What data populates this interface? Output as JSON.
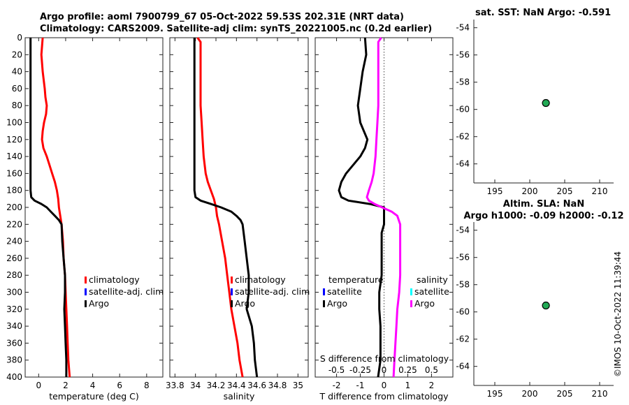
{
  "header": {
    "line1": "Argo profile: aoml 7900799_67 05-Oct-2022 59.53S 202.31E (NRT data)",
    "line2": "Climatology: CARS2009. Satellite-adj clim: synTS_20221005.nc (0.2d earlier)",
    "stamp": "©IMOS 10-Oct-2022 11:39:44"
  },
  "colors": {
    "climatology": "#ff0000",
    "satellite": "#0000ff",
    "argo": "#000000",
    "sal_satellite": "#00ffff",
    "sal_argo": "#ff00ff",
    "marker": "#22aa55"
  },
  "chart_data": [
    {
      "type": "line",
      "name": "temperature",
      "xlabel": "temperature (deg C)",
      "xlim": [
        -1,
        9.2
      ],
      "ylim": [
        0,
        400
      ],
      "xticks": [
        0,
        2,
        4,
        6,
        8
      ],
      "xtick_labels": [
        "0",
        "2",
        "4",
        "6",
        "8"
      ],
      "yticks": [
        0,
        20,
        40,
        60,
        80,
        100,
        120,
        140,
        160,
        180,
        200,
        220,
        240,
        260,
        280,
        300,
        320,
        340,
        360,
        380,
        400
      ],
      "legend": [
        "climatology",
        "satellite-adj. clim",
        "Argo"
      ],
      "series": [
        {
          "name": "climatology",
          "color": "red",
          "depth": [
            0,
            20,
            40,
            60,
            70,
            80,
            90,
            100,
            110,
            120,
            130,
            140,
            150,
            160,
            170,
            180,
            190,
            200,
            210,
            220,
            240,
            260,
            280,
            300,
            320,
            340,
            360,
            380,
            400
          ],
          "values": [
            0.3,
            0.2,
            0.3,
            0.45,
            0.5,
            0.6,
            0.55,
            0.4,
            0.3,
            0.25,
            0.35,
            0.6,
            0.8,
            1.0,
            1.2,
            1.35,
            1.45,
            1.5,
            1.6,
            1.7,
            1.8,
            1.85,
            1.95,
            2.0,
            2.05,
            2.1,
            2.15,
            2.2,
            2.3
          ]
        },
        {
          "name": "Argo",
          "color": "black",
          "depth": [
            0,
            20,
            40,
            60,
            80,
            100,
            120,
            140,
            160,
            180,
            188,
            192,
            196,
            200,
            205,
            210,
            215,
            220,
            240,
            260,
            280,
            300,
            320,
            340,
            360,
            380,
            400
          ],
          "values": [
            -0.6,
            -0.6,
            -0.6,
            -0.6,
            -0.6,
            -0.6,
            -0.6,
            -0.6,
            -0.6,
            -0.6,
            -0.55,
            -0.3,
            0.2,
            0.6,
            0.9,
            1.2,
            1.5,
            1.7,
            1.75,
            1.85,
            1.95,
            1.95,
            1.9,
            1.95,
            2.0,
            2.05,
            2.05
          ]
        }
      ]
    },
    {
      "type": "line",
      "name": "salinity",
      "xlabel": "salinity",
      "xlim": [
        33.75,
        35.1
      ],
      "ylim": [
        0,
        400
      ],
      "xticks": [
        33.8,
        34,
        34.2,
        34.4,
        34.6,
        34.8,
        35
      ],
      "xtick_labels": [
        "33.8",
        "34",
        "34.2",
        "34.4",
        "34.6",
        "34.8",
        "35"
      ],
      "legend": [
        "climatology",
        "satellite-adj. clim",
        "Argo"
      ],
      "series": [
        {
          "name": "climatology",
          "color": "red",
          "depth": [
            0,
            5,
            20,
            40,
            60,
            80,
            100,
            120,
            140,
            160,
            170,
            180,
            190,
            200,
            210,
            220,
            240,
            260,
            280,
            300,
            320,
            340,
            360,
            380,
            400
          ],
          "values": [
            34.02,
            34.05,
            34.05,
            34.05,
            34.05,
            34.05,
            34.06,
            34.07,
            34.08,
            34.1,
            34.12,
            34.15,
            34.18,
            34.2,
            34.21,
            34.23,
            34.26,
            34.29,
            34.31,
            34.33,
            34.35,
            34.38,
            34.41,
            34.43,
            34.46
          ]
        },
        {
          "name": "Argo",
          "color": "black",
          "depth": [
            0,
            20,
            40,
            60,
            80,
            100,
            120,
            140,
            160,
            180,
            188,
            192,
            196,
            200,
            205,
            210,
            215,
            220,
            240,
            260,
            280,
            300,
            320,
            340,
            360,
            380,
            400
          ],
          "values": [
            33.99,
            33.99,
            33.99,
            33.99,
            33.99,
            33.99,
            33.99,
            33.99,
            33.99,
            33.99,
            34.0,
            34.05,
            34.15,
            34.25,
            34.35,
            34.4,
            34.44,
            34.46,
            34.48,
            34.5,
            34.52,
            34.52,
            34.5,
            34.55,
            34.57,
            34.58,
            34.6
          ]
        }
      ]
    },
    {
      "type": "line",
      "name": "difference",
      "xlabel": "T difference from climatology",
      "xlabel_top": "S difference from climatology",
      "xlim": [
        -2.9,
        2.9
      ],
      "ylim": [
        0,
        400
      ],
      "xticks": [
        -2,
        -1,
        0,
        1,
        2
      ],
      "xtick_labels": [
        "-2",
        "-1",
        "0",
        "1",
        "2"
      ],
      "xticks_s": [
        -0.5,
        -0.25,
        0,
        0.25,
        0.5
      ],
      "xtick_s_labels": [
        "-0.5",
        "-0.25",
        "0",
        "0.25",
        "0.5"
      ],
      "legend_t_title": "temperature",
      "legend_s_title": "salinity",
      "legend_t": [
        "satellite",
        "Argo"
      ],
      "legend_s": [
        "satellite",
        "Argo"
      ],
      "series": [
        {
          "name": "T Argo",
          "color": "black",
          "depth": [
            0,
            20,
            40,
            60,
            80,
            100,
            120,
            130,
            140,
            150,
            160,
            170,
            180,
            188,
            192,
            196,
            200,
            210,
            220,
            230,
            240,
            260,
            280,
            300,
            320,
            340,
            360,
            380,
            400
          ],
          "values": [
            -0.8,
            -0.75,
            -0.9,
            -1.0,
            -1.1,
            -1.0,
            -0.7,
            -0.8,
            -1.0,
            -1.3,
            -1.6,
            -1.8,
            -1.9,
            -1.8,
            -1.5,
            -0.6,
            0.0,
            0.0,
            0.0,
            -0.1,
            -0.1,
            -0.1,
            -0.1,
            -0.2,
            -0.2,
            -0.15,
            -0.15,
            -0.15,
            -0.25
          ]
        },
        {
          "name": "S Argo",
          "color": "magenta",
          "depth": [
            0,
            5,
            20,
            40,
            60,
            80,
            100,
            120,
            140,
            160,
            170,
            180,
            188,
            192,
            196,
            200,
            205,
            210,
            220,
            240,
            260,
            280,
            300,
            320,
            340,
            360,
            380,
            400
          ],
          "values": [
            -0.03,
            -0.06,
            -0.06,
            -0.06,
            -0.06,
            -0.06,
            -0.07,
            -0.08,
            -0.09,
            -0.11,
            -0.13,
            -0.16,
            -0.18,
            -0.16,
            -0.1,
            -0.02,
            0.08,
            0.14,
            0.17,
            0.17,
            0.17,
            0.17,
            0.16,
            0.14,
            0.13,
            0.12,
            0.11,
            0.1
          ]
        }
      ]
    },
    {
      "type": "scatter",
      "name": "sst_map",
      "title": "sat. SST: NaN Argo: -0.591",
      "xlim": [
        192,
        212
      ],
      "ylim": [
        -65.4,
        -53.4
      ],
      "xticks": [
        195,
        200,
        205,
        210
      ],
      "yticks": [
        -54,
        -56,
        -58,
        -60,
        -62,
        -64
      ],
      "points": [
        {
          "x": 202.31,
          "y": -59.53
        }
      ]
    },
    {
      "type": "scatter",
      "name": "sla_map",
      "title": "Altim. SLA: NaN",
      "subtitle": "Argo h1000: -0.09 h2000: -0.12",
      "xlim": [
        192,
        212
      ],
      "ylim": [
        -65.4,
        -53.4
      ],
      "xticks": [
        195,
        200,
        205,
        210
      ],
      "yticks": [
        -54,
        -56,
        -58,
        -60,
        -62,
        -64
      ],
      "points": [
        {
          "x": 202.31,
          "y": -59.53
        }
      ]
    }
  ]
}
